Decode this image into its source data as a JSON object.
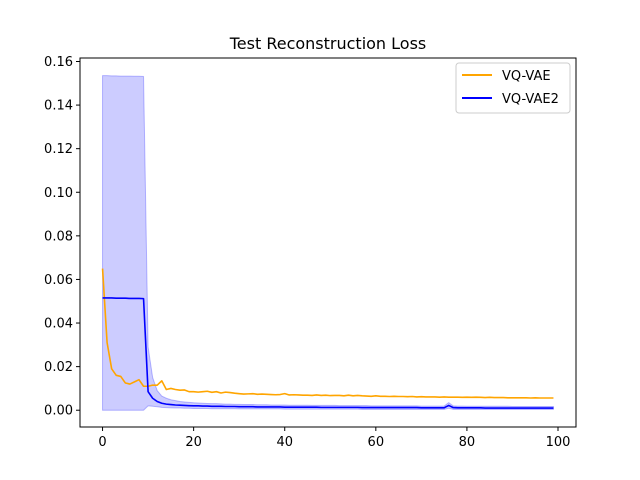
{
  "chart_data": {
    "type": "line",
    "title": "Test Reconstruction Loss",
    "xlabel": "",
    "ylabel": "",
    "xlim": [
      -4.95,
      103.95
    ],
    "ylim": [
      -0.0077,
      0.1616
    ],
    "xticks": [
      0,
      20,
      40,
      60,
      80,
      100
    ],
    "yticks": [
      0.0,
      0.02,
      0.04,
      0.06,
      0.08,
      0.1,
      0.12,
      0.14,
      0.16
    ],
    "ytick_labels": [
      "0.00",
      "0.02",
      "0.04",
      "0.06",
      "0.08",
      "0.10",
      "0.12",
      "0.14",
      "0.16"
    ],
    "xtick_labels": [
      "0",
      "20",
      "40",
      "60",
      "80",
      "100"
    ],
    "grid": false,
    "legend_position": "top-right",
    "series": [
      {
        "name": "VQ-VAE",
        "color": "#ffa500",
        "x": [
          0,
          1,
          2,
          3,
          4,
          5,
          6,
          7,
          8,
          9,
          10,
          11,
          12,
          13,
          14,
          15,
          16,
          17,
          18,
          19,
          20,
          21,
          22,
          23,
          24,
          25,
          26,
          27,
          28,
          29,
          30,
          31,
          32,
          33,
          34,
          35,
          36,
          37,
          38,
          39,
          40,
          41,
          42,
          43,
          44,
          45,
          46,
          47,
          48,
          49,
          50,
          51,
          52,
          53,
          54,
          55,
          56,
          57,
          58,
          59,
          60,
          61,
          62,
          63,
          64,
          65,
          66,
          67,
          68,
          69,
          70,
          71,
          72,
          73,
          74,
          75,
          76,
          77,
          78,
          79,
          80,
          81,
          82,
          83,
          84,
          85,
          86,
          87,
          88,
          89,
          90,
          91,
          92,
          93,
          94,
          95,
          96,
          97,
          98,
          99
        ],
        "y": [
          0.065,
          0.031,
          0.019,
          0.016,
          0.0155,
          0.0125,
          0.012,
          0.013,
          0.014,
          0.011,
          0.011,
          0.0115,
          0.0115,
          0.0135,
          0.0095,
          0.01,
          0.0095,
          0.0092,
          0.0093,
          0.0085,
          0.0085,
          0.0083,
          0.0085,
          0.0087,
          0.0082,
          0.0085,
          0.0079,
          0.0083,
          0.0081,
          0.0078,
          0.0076,
          0.0074,
          0.0075,
          0.0076,
          0.0073,
          0.0074,
          0.0073,
          0.0072,
          0.0071,
          0.0072,
          0.0076,
          0.007,
          0.0071,
          0.007,
          0.0069,
          0.0069,
          0.0068,
          0.007,
          0.0068,
          0.0069,
          0.0067,
          0.0068,
          0.0068,
          0.0066,
          0.0069,
          0.0066,
          0.0068,
          0.0066,
          0.0065,
          0.0064,
          0.0066,
          0.0064,
          0.0064,
          0.0063,
          0.0064,
          0.0063,
          0.0063,
          0.0062,
          0.0063,
          0.0061,
          0.0062,
          0.0061,
          0.0061,
          0.0061,
          0.006,
          0.0061,
          0.006,
          0.006,
          0.006,
          0.0059,
          0.006,
          0.0059,
          0.006,
          0.0059,
          0.0058,
          0.0059,
          0.0058,
          0.0058,
          0.0058,
          0.0057,
          0.0057,
          0.0057,
          0.0057,
          0.0057,
          0.0056,
          0.0057,
          0.0056,
          0.0056,
          0.0056,
          0.0056
        ]
      },
      {
        "name": "VQ-VAE2",
        "color": "#0000ff",
        "band_color": "#0000ff",
        "band_opacity": 0.2,
        "x": [
          0,
          1,
          2,
          3,
          4,
          5,
          6,
          7,
          8,
          9,
          10,
          11,
          12,
          13,
          14,
          15,
          16,
          17,
          18,
          19,
          20,
          21,
          22,
          23,
          24,
          25,
          26,
          27,
          28,
          29,
          30,
          31,
          32,
          33,
          34,
          35,
          36,
          37,
          38,
          39,
          40,
          41,
          42,
          43,
          44,
          45,
          46,
          47,
          48,
          49,
          50,
          51,
          52,
          53,
          54,
          55,
          56,
          57,
          58,
          59,
          60,
          61,
          62,
          63,
          64,
          65,
          66,
          67,
          68,
          69,
          70,
          71,
          72,
          73,
          74,
          75,
          76,
          77,
          78,
          79,
          80,
          81,
          82,
          83,
          84,
          85,
          86,
          87,
          88,
          89,
          90,
          91,
          92,
          93,
          94,
          95,
          96,
          97,
          98,
          99
        ],
        "y": [
          0.0515,
          0.0515,
          0.0515,
          0.0514,
          0.0514,
          0.0514,
          0.0513,
          0.0513,
          0.0513,
          0.0512,
          0.0085,
          0.0055,
          0.004,
          0.0032,
          0.0028,
          0.0026,
          0.0024,
          0.0023,
          0.0022,
          0.0021,
          0.002,
          0.002,
          0.0019,
          0.0019,
          0.0018,
          0.0018,
          0.0018,
          0.0017,
          0.0017,
          0.0017,
          0.0016,
          0.0016,
          0.0016,
          0.0016,
          0.0015,
          0.0015,
          0.0015,
          0.0015,
          0.0015,
          0.0015,
          0.0014,
          0.0014,
          0.0014,
          0.0014,
          0.0014,
          0.0014,
          0.0014,
          0.0014,
          0.0013,
          0.0013,
          0.0013,
          0.0013,
          0.0013,
          0.0013,
          0.0013,
          0.0013,
          0.0013,
          0.0012,
          0.0012,
          0.0012,
          0.0012,
          0.0012,
          0.0012,
          0.0012,
          0.0012,
          0.0012,
          0.0012,
          0.0012,
          0.0012,
          0.0012,
          0.0011,
          0.0011,
          0.0011,
          0.0011,
          0.0011,
          0.0011,
          0.0022,
          0.0012,
          0.0011,
          0.0011,
          0.0011,
          0.0011,
          0.0011,
          0.0011,
          0.001,
          0.001,
          0.001,
          0.001,
          0.001,
          0.001,
          0.001,
          0.001,
          0.001,
          0.001,
          0.001,
          0.001,
          0.001,
          0.001,
          0.001,
          0.001
        ],
        "upper": [
          0.1535,
          0.1535,
          0.1534,
          0.1534,
          0.1533,
          0.1533,
          0.1533,
          0.1532,
          0.1532,
          0.1531,
          0.029,
          0.015,
          0.009,
          0.0065,
          0.0055,
          0.0048,
          0.0044,
          0.004,
          0.0038,
          0.0036,
          0.0034,
          0.0033,
          0.0032,
          0.0031,
          0.003,
          0.003,
          0.0029,
          0.0028,
          0.0028,
          0.0027,
          0.0027,
          0.0026,
          0.0026,
          0.0026,
          0.0025,
          0.0025,
          0.0025,
          0.0024,
          0.0024,
          0.0024,
          0.0024,
          0.0023,
          0.0023,
          0.0023,
          0.0023,
          0.0023,
          0.0022,
          0.0022,
          0.0022,
          0.0022,
          0.0022,
          0.0022,
          0.0021,
          0.0021,
          0.0021,
          0.0021,
          0.0021,
          0.0021,
          0.0021,
          0.002,
          0.002,
          0.002,
          0.002,
          0.002,
          0.002,
          0.002,
          0.002,
          0.002,
          0.002,
          0.002,
          0.0019,
          0.0019,
          0.0019,
          0.0019,
          0.0019,
          0.0019,
          0.0035,
          0.002,
          0.0019,
          0.0019,
          0.0018,
          0.0018,
          0.0018,
          0.0018,
          0.0018,
          0.0018,
          0.0018,
          0.0018,
          0.0018,
          0.0018,
          0.0017,
          0.0017,
          0.0017,
          0.0017,
          0.0017,
          0.0017,
          0.0017,
          0.0017,
          0.0017,
          0.0017
        ],
        "lower": [
          0.0,
          0.0,
          0.0,
          0.0,
          0.0,
          0.0,
          0.0,
          0.0,
          0.0,
          0.0,
          0.002,
          0.0018,
          0.0016,
          0.0013,
          0.0012,
          0.0011,
          0.001,
          0.001,
          0.0009,
          0.0009,
          0.0008,
          0.0008,
          0.0008,
          0.0008,
          0.0007,
          0.0007,
          0.0007,
          0.0007,
          0.0007,
          0.0007,
          0.0006,
          0.0006,
          0.0006,
          0.0006,
          0.0006,
          0.0006,
          0.0006,
          0.0006,
          0.0006,
          0.0006,
          0.0005,
          0.0005,
          0.0005,
          0.0005,
          0.0005,
          0.0005,
          0.0005,
          0.0005,
          0.0005,
          0.0005,
          0.0005,
          0.0005,
          0.0005,
          0.0005,
          0.0005,
          0.0005,
          0.0005,
          0.0004,
          0.0004,
          0.0004,
          0.0004,
          0.0004,
          0.0004,
          0.0004,
          0.0004,
          0.0004,
          0.0004,
          0.0004,
          0.0004,
          0.0004,
          0.0004,
          0.0004,
          0.0004,
          0.0004,
          0.0004,
          0.0004,
          0.0009,
          0.0004,
          0.0004,
          0.0004,
          0.0004,
          0.0004,
          0.0004,
          0.0004,
          0.0004,
          0.0004,
          0.0004,
          0.0004,
          0.0004,
          0.0004,
          0.0004,
          0.0004,
          0.0004,
          0.0004,
          0.0004,
          0.0004,
          0.0004,
          0.0004,
          0.0004,
          0.0004
        ]
      }
    ]
  }
}
